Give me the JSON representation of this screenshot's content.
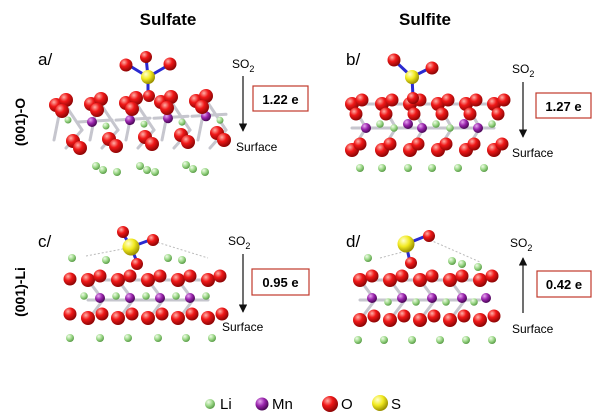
{
  "columns": [
    {
      "title": "Sulfate"
    },
    {
      "title": "Sulfite"
    }
  ],
  "rows": [
    {
      "label": "(001)-O"
    },
    {
      "label": "(001)-Li"
    }
  ],
  "panels": [
    {
      "id": "a",
      "letter": "a/",
      "top_label": "SO",
      "top_sub": "2",
      "bottom_label": "Surface",
      "charge": "1.22 e",
      "arrow": "down"
    },
    {
      "id": "b",
      "letter": "b/",
      "top_label": "SO",
      "top_sub": "2",
      "bottom_label": "Surface",
      "charge": "1.27 e",
      "arrow": "down"
    },
    {
      "id": "c",
      "letter": "c/",
      "top_label": "SO",
      "top_sub": "2",
      "bottom_label": "Surface",
      "charge": "0.95 e",
      "arrow": "down"
    },
    {
      "id": "d",
      "letter": "d/",
      "top_label": "SO",
      "top_sub": "2",
      "bottom_label": "Surface",
      "charge": "0.42 e",
      "arrow": "up"
    }
  ],
  "legend": [
    {
      "label": "Li",
      "color": "#8fd07a"
    },
    {
      "label": "Mn",
      "color": "#8a1c9c"
    },
    {
      "label": "O",
      "color": "#e01010"
    },
    {
      "label": "S",
      "color": "#e8e020"
    }
  ],
  "colors": {
    "li": "#8fd07a",
    "mn": "#8a1c9c",
    "o": "#e01010",
    "s": "#e8e020",
    "bond": "#c6c6ce",
    "so_bond": "#2a2ad0",
    "box_border": "#c0392b"
  }
}
